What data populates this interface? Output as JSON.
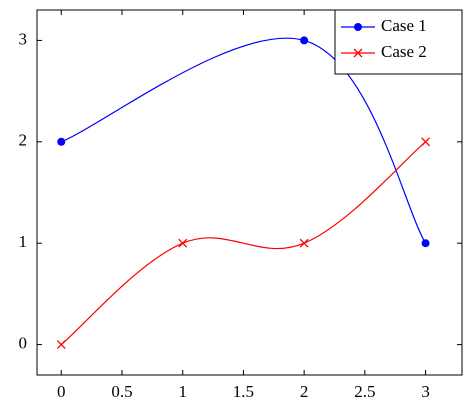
{
  "chart_data": {
    "type": "line",
    "series": [
      {
        "name": "Case 1",
        "color": "#0000ff",
        "marker": "circle",
        "x": [
          0,
          2,
          3
        ],
        "values": [
          2,
          3,
          1
        ]
      },
      {
        "name": "Case 2",
        "color": "#ff0000",
        "marker": "cross",
        "x": [
          0,
          1,
          2,
          3
        ],
        "values": [
          0,
          1,
          1,
          2
        ]
      }
    ],
    "smooth": true,
    "xlim": [
      -0.2,
      3.3
    ],
    "ylim": [
      -0.3,
      3.3
    ],
    "xticks": [
      0,
      0.5,
      1,
      1.5,
      2,
      2.5,
      3
    ],
    "yticks": [
      0,
      1,
      2,
      3
    ],
    "grid": false,
    "legend": "top-right"
  }
}
